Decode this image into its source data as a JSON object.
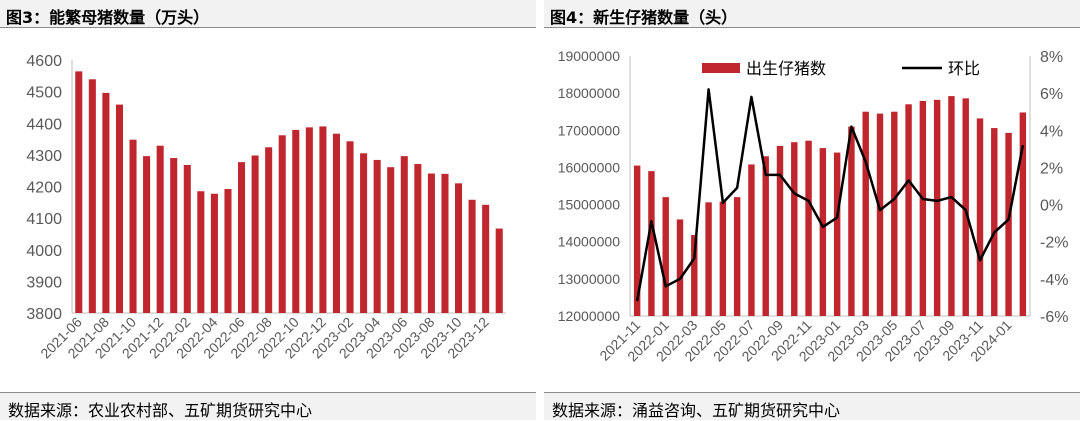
{
  "colors": {
    "bar": "#c0262d",
    "line": "#000000",
    "axis_text": "#595959",
    "axis": "#bfbfbf"
  },
  "left_panel": {
    "title": "图3：能繁母猪数量（万头）",
    "source": "数据来源：农业农村部、五矿期货研究中心"
  },
  "right_panel": {
    "title": "图4：新生仔猪数量（头）",
    "source": "数据来源：涌益咨询、五矿期货研究中心"
  },
  "chart_data": [
    {
      "type": "bar",
      "title": "图3：能繁母猪数量（万头）",
      "xlabel": "",
      "ylabel": "",
      "ylim": [
        3800,
        4600
      ],
      "yticks": [
        3800,
        3900,
        4000,
        4100,
        4200,
        4300,
        4400,
        4500,
        4600
      ],
      "xtick_labels": [
        "2021-06",
        "2021-08",
        "2021-10",
        "2021-12",
        "2022-02",
        "2022-04",
        "2022-06",
        "2022-08",
        "2022-10",
        "2022-12",
        "2023-02",
        "2023-04",
        "2023-06",
        "2023-08",
        "2023-10",
        "2023-12"
      ],
      "grid": false,
      "legend": "none",
      "categories": [
        "2021-06",
        "2021-07",
        "2021-08",
        "2021-09",
        "2021-10",
        "2021-11",
        "2021-12",
        "2022-01",
        "2022-02",
        "2022-03",
        "2022-04",
        "2022-05",
        "2022-06",
        "2022-07",
        "2022-08",
        "2022-09",
        "2022-10",
        "2022-11",
        "2022-12",
        "2023-01",
        "2023-02",
        "2023-03",
        "2023-04",
        "2023-05",
        "2023-06",
        "2023-07",
        "2023-08",
        "2023-09",
        "2023-10",
        "2023-11",
        "2023-12",
        "2024-01"
      ],
      "values": [
        4564,
        4539,
        4496,
        4459,
        4348,
        4296,
        4329,
        4290,
        4268,
        4185,
        4177,
        4192,
        4277,
        4298,
        4324,
        4362,
        4379,
        4387,
        4390,
        4367,
        4343,
        4305,
        4284,
        4261,
        4296,
        4271,
        4241,
        4240,
        4210,
        4158,
        4142,
        4067
      ]
    },
    {
      "type": "bar+line",
      "title": "图4：新生仔猪数量（头）",
      "xlabel": "",
      "ylim": [
        12000000,
        19000000
      ],
      "yticks": [
        12000000,
        13000000,
        14000000,
        15000000,
        16000000,
        17000000,
        18000000,
        19000000
      ],
      "y2lim": [
        -6,
        8
      ],
      "y2ticks": [
        "-6%",
        "-4%",
        "-2%",
        "0%",
        "2%",
        "4%",
        "6%",
        "8%"
      ],
      "y2tick_values": [
        -6,
        -4,
        -2,
        0,
        2,
        4,
        6,
        8
      ],
      "xtick_labels": [
        "2021-11",
        "2022-01",
        "2022-03",
        "2022-05",
        "2022-07",
        "2022-09",
        "2022-11",
        "2023-01",
        "2023-03",
        "2023-05",
        "2023-07",
        "2023-09",
        "2023-11",
        "2024-01"
      ],
      "grid": false,
      "legend": "top",
      "categories": [
        "2021-11",
        "2021-12",
        "2022-01",
        "2022-02",
        "2022-03",
        "2022-04",
        "2022-05",
        "2022-06",
        "2022-07",
        "2022-08",
        "2022-09",
        "2022-10",
        "2022-11",
        "2022-12",
        "2023-01",
        "2023-02",
        "2023-03",
        "2023-04",
        "2023-05",
        "2023-06",
        "2023-07",
        "2023-08",
        "2023-09",
        "2023-10",
        "2023-11",
        "2023-12",
        "2024-01",
        "2024-02"
      ],
      "series": [
        {
          "name": "出生仔猪数",
          "type": "bar",
          "axis": "left",
          "values": [
            16050000,
            15900000,
            15200000,
            14600000,
            14180000,
            15060000,
            15080000,
            15200000,
            16080000,
            16300000,
            16580000,
            16680000,
            16720000,
            16520000,
            16400000,
            17100000,
            17500000,
            17450000,
            17500000,
            17700000,
            17790000,
            17820000,
            17920000,
            17860000,
            17320000,
            17060000,
            16930000,
            17480000
          ]
        },
        {
          "name": "环比",
          "type": "line",
          "axis": "right",
          "unit": "%",
          "values": [
            -5.2,
            -0.9,
            -4.4,
            -4.0,
            -2.9,
            6.2,
            0.1,
            0.9,
            5.8,
            1.6,
            1.6,
            0.6,
            0.2,
            -1.2,
            -0.7,
            4.2,
            2.3,
            -0.3,
            0.3,
            1.3,
            0.3,
            0.2,
            0.4,
            -0.3,
            -3.0,
            -1.5,
            -0.8,
            3.2
          ]
        }
      ]
    }
  ]
}
